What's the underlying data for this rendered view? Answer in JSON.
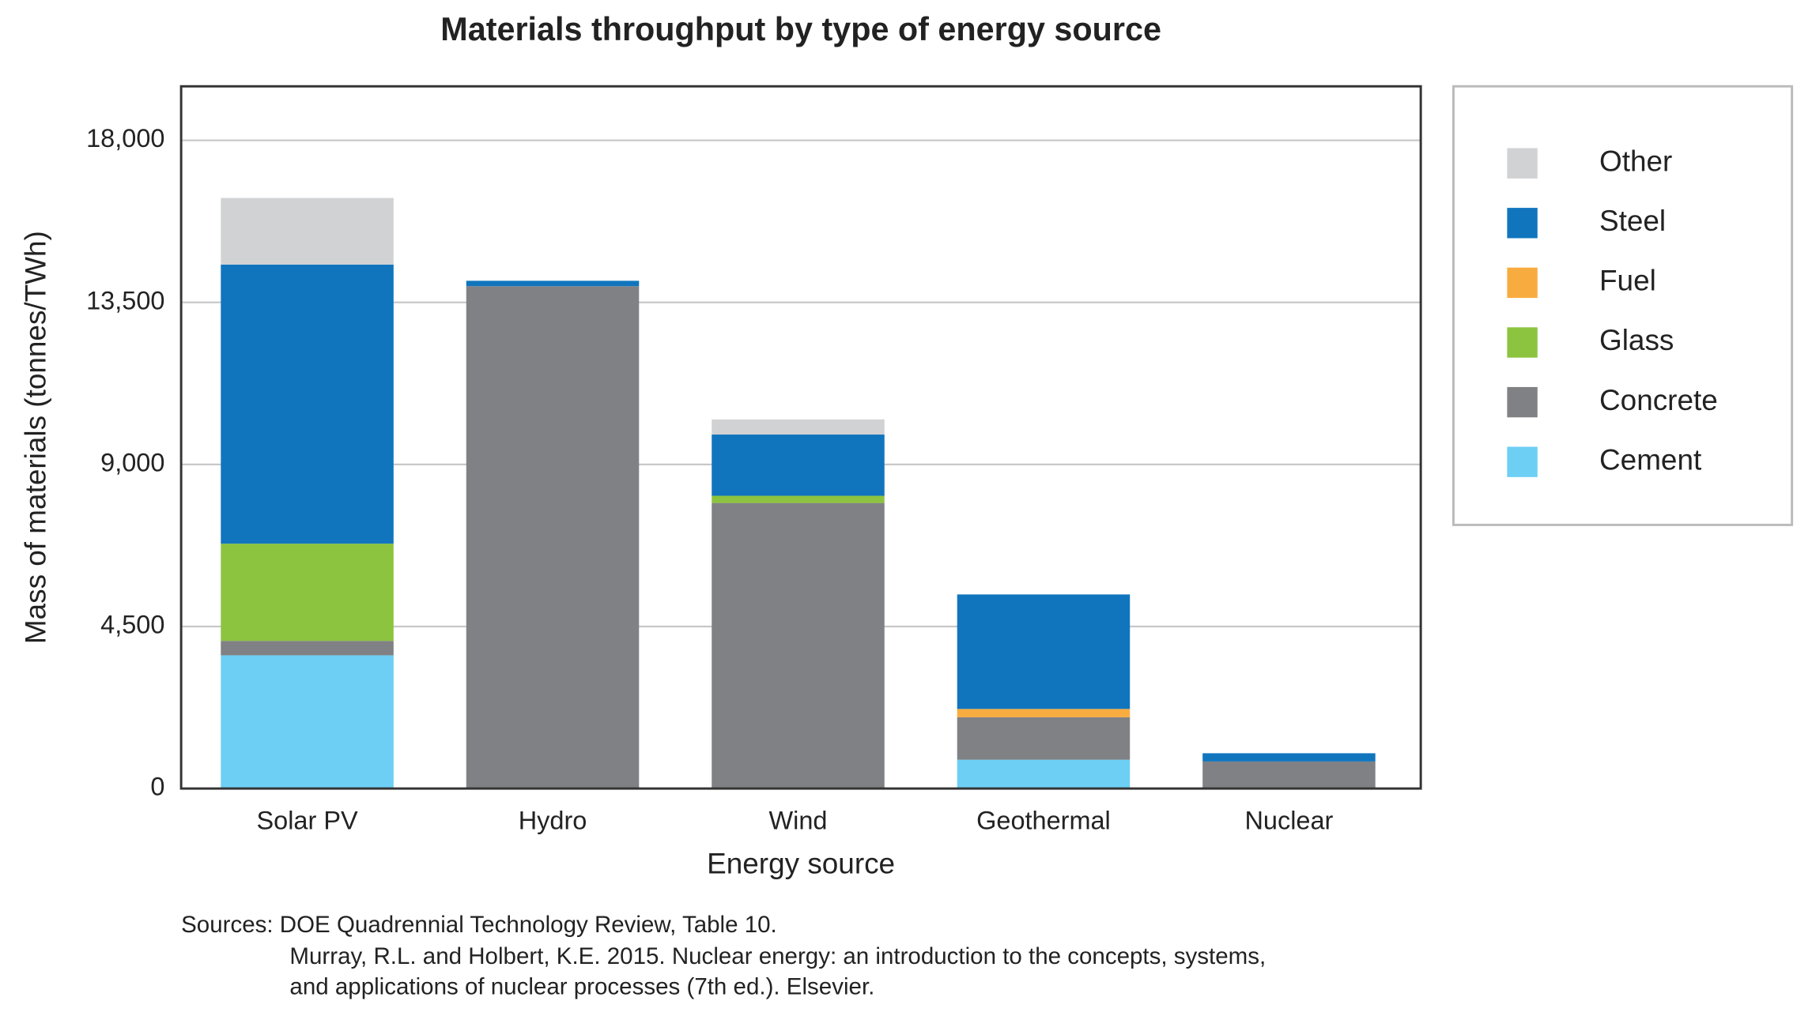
{
  "chart_data": {
    "type": "stacked_bar",
    "title": "Materials throughput by type of energy source",
    "x_label": "Energy source",
    "y_label": "Mass of materials (tonnes/TWh)",
    "categories": [
      "Solar PV",
      "Hydro",
      "Wind",
      "Geothermal",
      "Nuclear"
    ],
    "series": [
      {
        "name": "Cement",
        "color": "#6dcff4",
        "values": [
          3700,
          0,
          0,
          800,
          0
        ]
      },
      {
        "name": "Concrete",
        "color": "#808184",
        "values": [
          400,
          13950,
          7930,
          1180,
          750
        ]
      },
      {
        "name": "Glass",
        "color": "#8cc43f",
        "values": [
          2700,
          0,
          200,
          0,
          0
        ]
      },
      {
        "name": "Fuel",
        "color": "#f8ac3f",
        "values": [
          0,
          0,
          0,
          230,
          0
        ]
      },
      {
        "name": "Steel",
        "color": "#1175be",
        "values": [
          7750,
          150,
          1700,
          3180,
          230
        ]
      },
      {
        "name": "Other",
        "color": "#d1d2d4",
        "values": [
          1850,
          0,
          420,
          0,
          0
        ]
      }
    ],
    "ylim": [
      0,
      19500
    ],
    "yticks": [
      0,
      {
        "value": 4500,
        "label": "4,500"
      },
      {
        "value": 9000,
        "label": "9,000"
      },
      {
        "value": 13500,
        "label": "13,500"
      },
      {
        "value": 18000,
        "label": "18,000"
      }
    ],
    "grid": true,
    "legend": "right",
    "notes": [
      "Sources: DOE Quadrennial Technology Review, Table 10.",
      "Murray, R.L. and Holbert, K.E. 2015. Nuclear energy: an introduction to the concepts, systems,",
      "and applications of nuclear processes (7th ed.). Elsevier."
    ]
  }
}
